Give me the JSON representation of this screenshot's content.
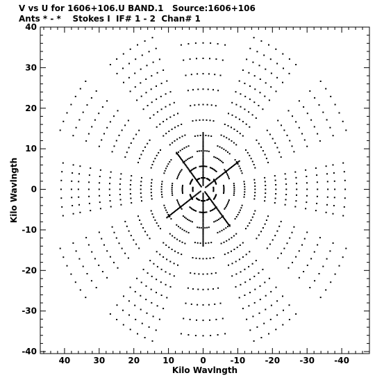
{
  "chart_data": {
    "type": "scatter",
    "title": "V vs U for 1606+106.U BAND.1   Source:1606+106",
    "subtitle": "Ants * - *    Stokes I  IF# 1 - 2  Chan# 1",
    "xlabel": "Kilo Wavlngth",
    "ylabel": "Kilo Wavlngth",
    "xlim": [
      47,
      -48
    ],
    "ylim": [
      -40.5,
      40
    ],
    "x_ticks": [
      40,
      30,
      20,
      10,
      0,
      -10,
      -20,
      -30,
      -40
    ],
    "y_ticks": [
      40,
      30,
      20,
      10,
      0,
      -10,
      -20,
      -30,
      -40
    ],
    "grid": false,
    "marker_color": "#000000",
    "series": [
      {
        "points_description": "uv-coverage samples",
        "tracks": [
          {
            "angle_deg": 0,
            "radii": [
              41,
              38,
              36,
              33,
              30,
              27,
              24,
              21,
              18,
              15,
              12,
              9,
              6,
              3
            ]
          },
          {
            "angle_deg": 30,
            "radii": [
              44,
              40,
              36,
              32,
              28,
              24,
              20,
              16,
              12,
              8,
              4
            ]
          },
          {
            "angle_deg": 60,
            "radii": [
              42,
              39,
              36,
              33,
              30,
              27,
              24,
              21,
              18,
              15,
              12,
              9,
              6,
              3
            ]
          },
          {
            "angle_deg": 90,
            "radii": [
              38,
              34,
              30,
              26,
              22,
              18,
              14,
              10,
              6,
              3
            ]
          },
          {
            "angle_deg": 120,
            "radii": [
              42,
              39,
              36,
              33,
              30,
              27,
              24,
              21,
              18,
              15,
              12,
              9,
              6,
              3
            ]
          },
          {
            "angle_deg": 150,
            "radii": [
              44,
              40,
              36,
              32,
              28,
              24,
              20,
              16,
              12,
              8,
              4
            ]
          }
        ]
      }
    ]
  }
}
